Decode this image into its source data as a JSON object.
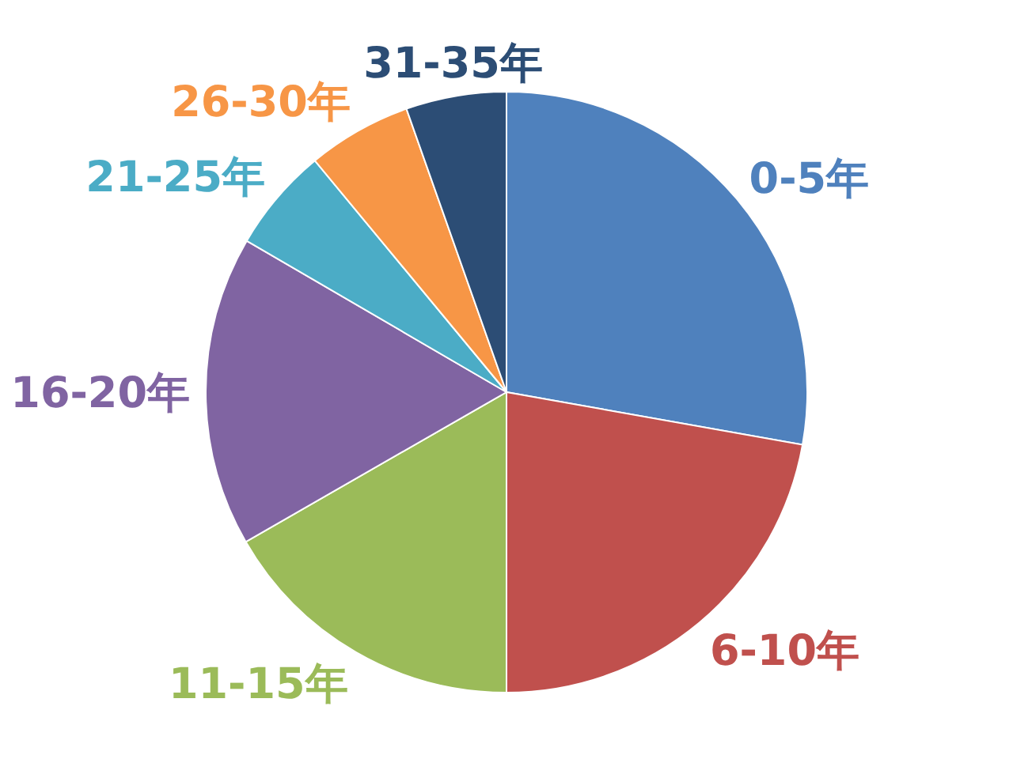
{
  "chart_data": {
    "type": "pie",
    "categories": [
      "0-5年",
      "6-10年",
      "11-15年",
      "16-20年",
      "21-25年",
      "26-30年",
      "31-35年"
    ],
    "values": [
      27.8,
      22.2,
      16.7,
      16.7,
      5.6,
      5.6,
      5.4
    ],
    "colors": [
      "#4f81bd",
      "#c0504d",
      "#9bbb59",
      "#8064a2",
      "#4bacc6",
      "#f79646",
      "#2c4d75"
    ]
  }
}
